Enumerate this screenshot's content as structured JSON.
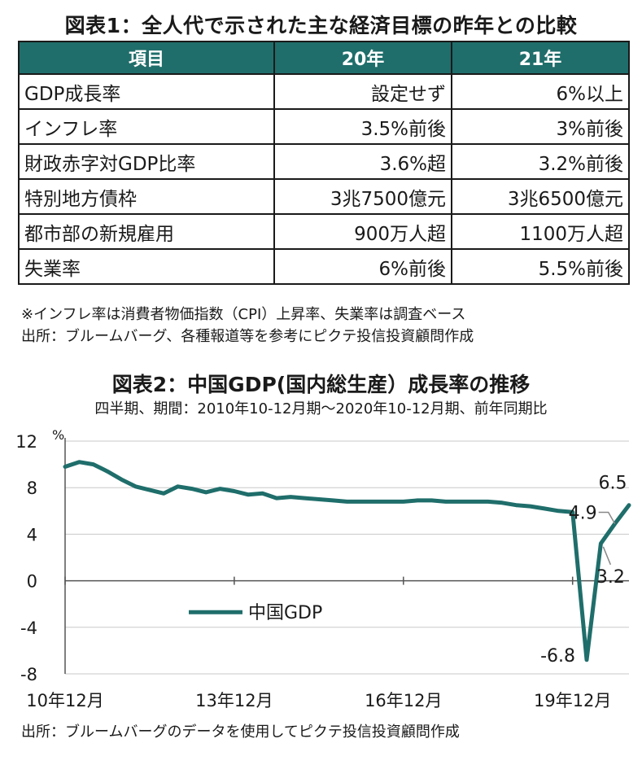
{
  "table_title": "図表1：全人代で示された主な経済目標の昨年との比較",
  "table": {
    "headers": [
      "項目",
      "20年",
      "21年"
    ],
    "rows": [
      {
        "item": "GDP成長率",
        "y20": "設定せず",
        "y21": "6%以上"
      },
      {
        "item": "インフレ率",
        "y20": "3.5%前後",
        "y21": "3%前後"
      },
      {
        "item": "財政赤字対GDP比率",
        "y20": "3.6%超",
        "y21": "3.2%前後"
      },
      {
        "item": "特別地方債枠",
        "y20": "3兆7500億元",
        "y21": "3兆6500億元"
      },
      {
        "item": "都市部の新規雇用",
        "y20": "900万人超",
        "y21": "1100万人超"
      },
      {
        "item": "失業率",
        "y20": "6%前後",
        "y21": "5.5%前後"
      }
    ],
    "header_color": "#1f6e6b"
  },
  "notes": [
    "※インフレ率は消費者物価指数（CPI）上昇率、失業率は調査ベース",
    "出所：ブルームバーグ、各種報道等を参考にピクテ投信投資顧問作成"
  ],
  "chart_title": "図表2：中国GDP(国内総生産）成長率の推移",
  "chart_subtitle": "四半期、期間：2010年10-12月期～2020年10-12月期、前年同期比",
  "chart_source": "出所：ブルームバーグのデータを使用してピクテ投信投資顧問作成",
  "chart_data": {
    "type": "line",
    "x": [
      "2010Q4",
      "2011Q1",
      "2011Q2",
      "2011Q3",
      "2011Q4",
      "2012Q1",
      "2012Q2",
      "2012Q3",
      "2012Q4",
      "2013Q1",
      "2013Q2",
      "2013Q3",
      "2013Q4",
      "2014Q1",
      "2014Q2",
      "2014Q3",
      "2014Q4",
      "2015Q1",
      "2015Q2",
      "2015Q3",
      "2015Q4",
      "2016Q1",
      "2016Q2",
      "2016Q3",
      "2016Q4",
      "2017Q1",
      "2017Q2",
      "2017Q3",
      "2017Q4",
      "2018Q1",
      "2018Q2",
      "2018Q3",
      "2018Q4",
      "2019Q1",
      "2019Q2",
      "2019Q3",
      "2019Q4",
      "2020Q1",
      "2020Q2",
      "2020Q3",
      "2020Q4"
    ],
    "series": [
      {
        "name": "中国GDP",
        "color": "#1f6e6b",
        "values": [
          9.8,
          10.2,
          10.0,
          9.4,
          8.7,
          8.1,
          7.8,
          7.5,
          8.1,
          7.9,
          7.6,
          7.9,
          7.7,
          7.4,
          7.5,
          7.1,
          7.2,
          7.1,
          7.0,
          6.9,
          6.8,
          6.8,
          6.8,
          6.8,
          6.8,
          6.9,
          6.9,
          6.8,
          6.8,
          6.8,
          6.8,
          6.7,
          6.5,
          6.4,
          6.2,
          6.0,
          5.9,
          -6.8,
          3.2,
          4.9,
          6.5
        ]
      }
    ],
    "x_tick_labels": [
      "10年12月",
      "13年12月",
      "16年12月",
      "19年12月"
    ],
    "y_ticks": [
      "12",
      "8",
      "4",
      "0",
      "-4",
      "-8"
    ],
    "y_unit": "%",
    "ylim": [
      -8,
      12
    ],
    "annotations": [
      "6.5",
      "4.9",
      "3.2",
      "-6.8"
    ],
    "grid": true,
    "legend": "center-left"
  }
}
